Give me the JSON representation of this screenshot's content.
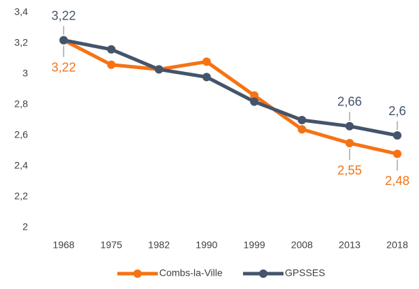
{
  "chart_data": {
    "type": "line",
    "categories": [
      "1968",
      "1975",
      "1982",
      "1990",
      "1999",
      "2008",
      "2013",
      "2018"
    ],
    "series": [
      {
        "name": "Combs-la-Ville",
        "color": "#f57314",
        "values": [
          3.22,
          3.06,
          3.03,
          3.08,
          2.86,
          2.64,
          2.55,
          2.48
        ],
        "value_labels": [
          "3,22",
          null,
          null,
          null,
          null,
          null,
          "2,55",
          "2,48"
        ]
      },
      {
        "name": "GPSSES",
        "color": "#44546a",
        "values": [
          3.22,
          3.16,
          3.03,
          2.98,
          2.82,
          2.7,
          2.66,
          2.6
        ],
        "value_labels": [
          "3,22",
          null,
          null,
          null,
          null,
          null,
          "2,66",
          "2,6"
        ]
      }
    ],
    "ylim": [
      2,
      3.4
    ],
    "yticks": [
      2,
      {
        "value": 2.2,
        "label": "2,2"
      },
      {
        "value": 2.4,
        "label": "2,4"
      },
      {
        "value": 2.6,
        "label": "2,6"
      },
      {
        "value": 2.8,
        "label": "2,8"
      },
      3,
      {
        "value": 3.2,
        "label": "3,2"
      },
      {
        "value": 3.4,
        "label": "3,4"
      }
    ],
    "grid": false,
    "legend": "bottom"
  }
}
